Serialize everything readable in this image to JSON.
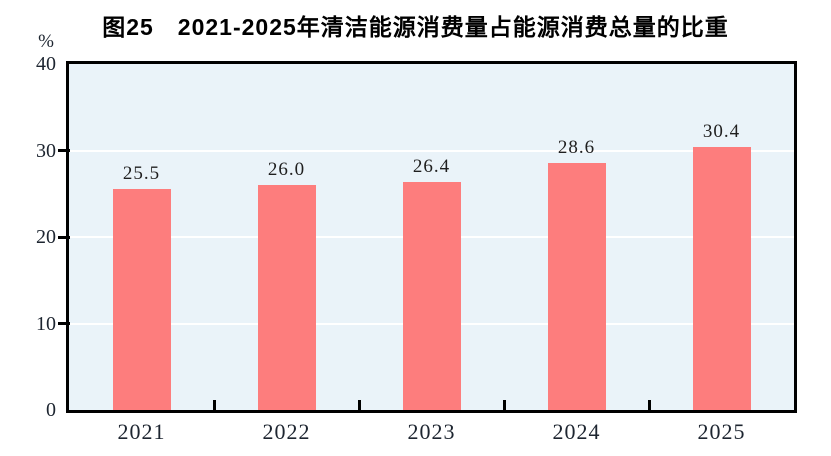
{
  "chart_data": {
    "type": "bar",
    "title": "图25　2021-2025年清洁能源消费量占能源消费总量的比重",
    "categories": [
      "2021",
      "2022",
      "2023",
      "2024",
      "2025"
    ],
    "values": [
      25.5,
      26.0,
      26.4,
      28.6,
      30.4
    ],
    "data_labels": [
      "25.5",
      "26.0",
      "26.4",
      "28.6",
      "30.4"
    ],
    "xlabel": "",
    "ylabel": "%",
    "ylim": [
      0,
      40
    ],
    "yticks": [
      0,
      10,
      20,
      30,
      40
    ],
    "grid": "horizontal",
    "legend_position": "none",
    "colors": {
      "bar": "#fd7d7d",
      "plot_background": "#eaf3f9",
      "frame": "#000000",
      "gridline": "#ffffff",
      "text": "#1d2530",
      "title": "#000000"
    }
  }
}
